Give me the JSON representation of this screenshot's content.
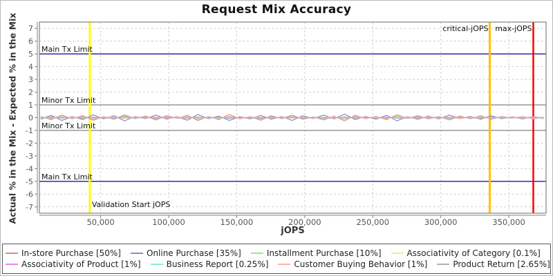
{
  "title": "Request Mix Accuracy",
  "axes": {
    "x_title": "jOPS",
    "y_title": "Actual % in the Mix - Expected % in the Mix"
  },
  "chart_data": {
    "type": "line",
    "title": "Request Mix Accuracy",
    "xlabel": "jOPS",
    "ylabel": "Actual % in the Mix - Expected % in the Mix",
    "xlim": [
      5000,
      377400
    ],
    "ylim": [
      -7.5,
      7.5
    ],
    "grid": true,
    "legend_position": "bottom",
    "legend_row_break": 4,
    "x_ticks": [
      50000,
      100000,
      150000,
      200000,
      250000,
      300000,
      350000
    ],
    "x_tick_labels": [
      "50,000",
      "100,000",
      "150,000",
      "200,000",
      "250,000",
      "300,000",
      "350,000"
    ],
    "y_ticks": [
      -7,
      -6,
      -5,
      -4,
      -3,
      -2,
      -1,
      0,
      1,
      2,
      3,
      4,
      5,
      6,
      7
    ],
    "limit_lines": [
      {
        "y": 5,
        "label": "Main Tx Limit",
        "color": "#0000a0"
      },
      {
        "y": 1,
        "label": "Minor Tx Limit",
        "color": "#808080"
      },
      {
        "y": -1,
        "label": "Minor Tx Limit",
        "color": "#808080"
      },
      {
        "y": -5,
        "label": "Main Tx Limit",
        "color": "#0000a0"
      }
    ],
    "marker_lines": [
      {
        "x": 42000,
        "label": "Validation Start jOPS",
        "color": "#ffff00",
        "width": 3,
        "label_pos": "bottom-right"
      },
      {
        "x": 336000,
        "label": "critical-jOPS",
        "color": "#ffc000",
        "width": 3,
        "label_pos": "top-left"
      },
      {
        "x": 368000,
        "label": "max-jOPS",
        "color": "#ff0000",
        "width": 2.5,
        "label_pos": "top-left"
      }
    ],
    "x": [
      6000,
      13700,
      21400,
      29100,
      36800,
      44500,
      52200,
      59900,
      67600,
      75300,
      83000,
      90700,
      98400,
      106100,
      113800,
      121500,
      129200,
      136900,
      144600,
      152300,
      160000,
      167700,
      175400,
      183100,
      190800,
      198500,
      206200,
      213900,
      221600,
      229300,
      237000,
      244700,
      252400,
      260100,
      267800,
      275500,
      283200,
      290900,
      298600,
      306300,
      314000,
      321700,
      329400,
      337100,
      344800,
      352500,
      360200,
      367900,
      375600
    ],
    "series": [
      {
        "name": "In-store Purchase [50%]",
        "color": "#f08080",
        "values": [
          0.1,
          -0.15,
          0.2,
          -0.1,
          0.15,
          -0.2,
          0.08,
          -0.12,
          0.22,
          -0.08,
          0.12,
          -0.18,
          0.15,
          -0.05,
          0.18,
          -0.22,
          0.1,
          -0.15,
          0.25,
          -0.1,
          0.08,
          -0.2,
          0.15,
          -0.08,
          0.2,
          -0.12,
          0.05,
          -0.18,
          0.12,
          -0.25,
          0.18,
          -0.08,
          0.1,
          -0.15,
          0.22,
          -0.05,
          0.15,
          -0.1,
          0.08,
          -0.18,
          0.12,
          -0.08,
          0.15,
          -0.12,
          0.1,
          -0.05,
          0.08,
          -0.1,
          0.05
        ]
      },
      {
        "name": "Online Purchase [35%]",
        "color": "#8888dd",
        "values": [
          -0.12,
          0.18,
          -0.22,
          0.08,
          -0.15,
          0.22,
          -0.1,
          0.15,
          -0.25,
          0.1,
          -0.08,
          0.2,
          -0.12,
          0.08,
          -0.2,
          0.25,
          -0.08,
          0.12,
          -0.22,
          0.08,
          -0.1,
          0.18,
          -0.12,
          0.1,
          -0.22,
          0.15,
          -0.08,
          0.2,
          -0.1,
          0.28,
          -0.15,
          0.1,
          -0.12,
          0.18,
          -0.25,
          0.08,
          -0.12,
          0.12,
          -0.1,
          0.2,
          -0.08,
          0.1,
          -0.12,
          0.15,
          -0.08,
          0.06,
          -0.1,
          0.08,
          -0.06
        ]
      },
      {
        "name": "Installment Purchase [10%]",
        "color": "#90ee90",
        "values": [
          0.06,
          -0.08,
          0.1,
          -0.05,
          0.08,
          -0.1,
          0.04,
          -0.07,
          0.12,
          -0.05,
          0.06,
          -0.09,
          0.07,
          -0.04,
          0.09,
          -0.12,
          0.05,
          -0.08,
          0.1,
          -0.05,
          0.04,
          -0.1,
          0.08,
          -0.04,
          0.1,
          -0.06,
          0.03,
          -0.09,
          0.06,
          -0.12,
          0.09,
          -0.04,
          0.05,
          -0.08,
          0.11,
          -0.03,
          0.08,
          -0.05,
          0.04,
          -0.09,
          0.06,
          -0.04,
          0.08,
          -0.06,
          0.05,
          -0.03,
          0.04,
          -0.05,
          0.03
        ]
      },
      {
        "name": "Associativity of Category [0.1%]",
        "color": "#f0f080",
        "values": [
          0.02,
          -0.02,
          0.03,
          -0.01,
          0.02,
          -0.03,
          0.01,
          0.02,
          -0.02,
          0.03,
          -0.01,
          0.02,
          -0.03,
          0.01,
          0.02,
          -0.02,
          0.03,
          -0.01,
          0.02,
          -0.03,
          0.01,
          0.02,
          -0.02,
          0.03,
          -0.01,
          0.02,
          -0.03,
          0.01,
          0.02,
          -0.02,
          0.03,
          -0.01,
          0.02,
          -0.03,
          0.01,
          0.02,
          -0.02,
          0.03,
          -0.01,
          0.02,
          -0.03,
          0.01,
          0.02,
          -0.02,
          0.03,
          -0.01,
          0.02,
          -0.03,
          0.01
        ]
      },
      {
        "name": "Associativity of Product [1%]",
        "color": "#ee82ee",
        "values": [
          0.03,
          -0.04,
          0.04,
          -0.02,
          0.05,
          -0.03,
          0.02,
          0.03,
          -0.04,
          0.04,
          -0.02,
          0.05,
          -0.03,
          0.02,
          0.03,
          -0.04,
          0.04,
          -0.02,
          0.05,
          -0.03,
          0.02,
          0.03,
          -0.04,
          0.04,
          -0.02,
          0.05,
          -0.03,
          0.02,
          0.03,
          -0.04,
          0.04,
          -0.02,
          0.05,
          -0.03,
          0.02,
          0.03,
          -0.04,
          0.04,
          -0.02,
          0.05,
          -0.03,
          0.02,
          0.03,
          -0.04,
          0.04,
          -0.02,
          0.05,
          -0.03,
          0.02
        ]
      },
      {
        "name": "Business Report [0.25%]",
        "color": "#80f0e0",
        "values": [
          -0.02,
          0.03,
          -0.04,
          0.02,
          -0.03,
          0.04,
          -0.02,
          -0.02,
          0.03,
          -0.04,
          0.02,
          -0.03,
          0.04,
          -0.02,
          -0.02,
          0.03,
          -0.04,
          0.02,
          -0.03,
          0.04,
          -0.02,
          -0.02,
          0.03,
          -0.04,
          0.02,
          -0.03,
          0.04,
          -0.02,
          -0.02,
          0.03,
          -0.04,
          0.02,
          -0.03,
          0.04,
          -0.02,
          -0.02,
          0.03,
          -0.04,
          0.02,
          -0.03,
          0.04,
          -0.02,
          -0.02,
          0.03,
          -0.04,
          0.02,
          -0.03,
          0.04,
          -0.02
        ]
      },
      {
        "name": "Customer Buying Behavior [1%]",
        "color": "#ffb0a8",
        "values": [
          0.05,
          -0.04,
          0.06,
          -0.03,
          0.04,
          -0.06,
          0.03,
          0.05,
          -0.04,
          0.06,
          -0.03,
          0.04,
          -0.06,
          0.03,
          0.05,
          -0.04,
          0.06,
          -0.03,
          0.04,
          -0.06,
          0.03,
          0.05,
          -0.04,
          0.06,
          -0.03,
          0.04,
          -0.06,
          0.03,
          0.05,
          -0.04,
          0.06,
          -0.03,
          0.04,
          -0.06,
          0.03,
          0.05,
          -0.04,
          0.06,
          -0.03,
          0.04,
          -0.06,
          0.03,
          0.05,
          -0.04,
          0.06,
          -0.03,
          0.04,
          -0.06,
          0.03
        ]
      },
      {
        "name": "Product Return [2.65%]",
        "color": "#b0b0b0",
        "values": [
          -0.05,
          0.06,
          -0.04,
          0.05,
          -0.06,
          0.04,
          -0.03,
          -0.05,
          0.06,
          -0.04,
          0.05,
          -0.06,
          0.04,
          -0.03,
          -0.05,
          0.06,
          -0.04,
          0.05,
          -0.06,
          0.04,
          -0.03,
          -0.05,
          0.06,
          -0.04,
          0.05,
          -0.06,
          0.04,
          -0.03,
          -0.05,
          0.06,
          -0.04,
          0.05,
          -0.06,
          0.04,
          -0.03,
          -0.05,
          0.06,
          -0.04,
          0.05,
          -0.06,
          0.04,
          -0.03,
          -0.05,
          0.06,
          -0.04,
          0.05,
          -0.06,
          0.04,
          -0.03
        ]
      }
    ],
    "style_colors": {
      "grid": "#cfcfcf",
      "plot_border": "#808080",
      "axis_line": "#808080",
      "tick_label": "#555555",
      "annotation_text": "#111111"
    }
  }
}
